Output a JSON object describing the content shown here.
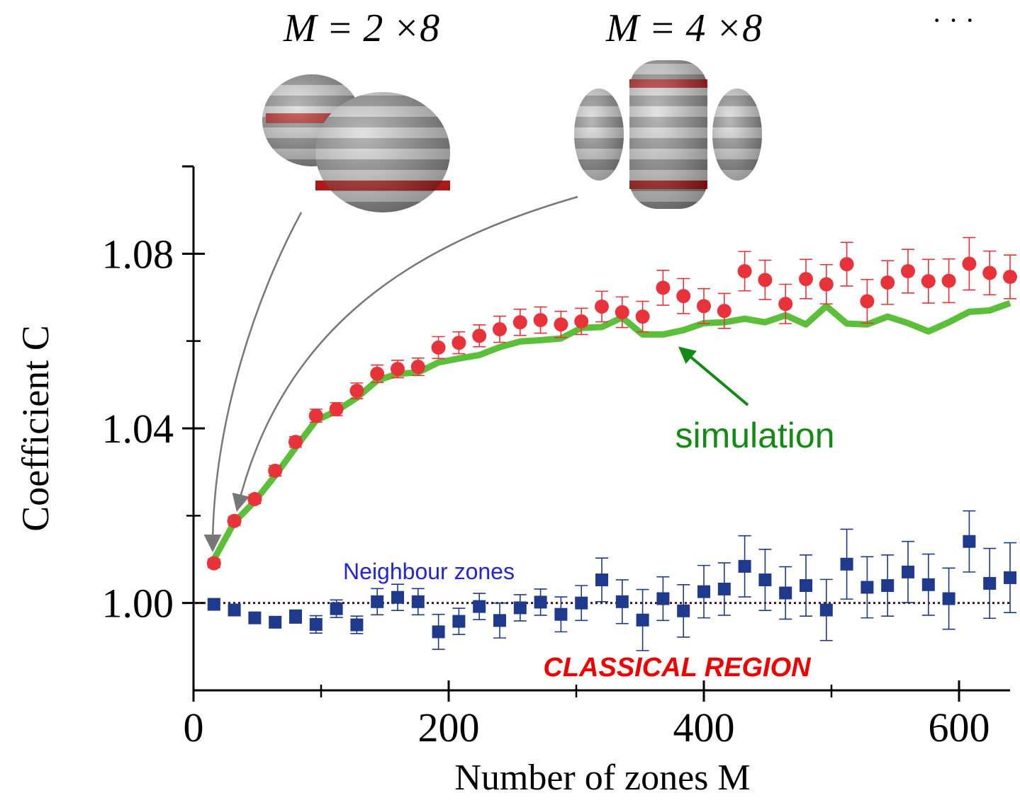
{
  "chart_data": {
    "type": "line",
    "y_label": "Coefficient C",
    "x_label": "Number of zones M",
    "annotations": [
      "M = 2 ×8",
      "M = 4 ×8",
      "· · ·",
      "CLASSICAL REGION"
    ],
    "xlim": [
      0,
      640
    ],
    "ylim": [
      0.98,
      1.1
    ],
    "xticks": [
      0,
      200,
      400,
      600
    ],
    "yticks": [
      {
        "value": 1.0,
        "label": "1.00"
      },
      1.04,
      1.08
    ],
    "xminorticks": [
      100,
      300,
      500
    ],
    "yminorticks": [
      1.02,
      1.06
    ],
    "hline": 1.0,
    "x": [
      16,
      32,
      48,
      64,
      80,
      96,
      112,
      128,
      144,
      160,
      176,
      192,
      208,
      224,
      240,
      256,
      272,
      288,
      304,
      320,
      336,
      352,
      368,
      384,
      400,
      416,
      432,
      448,
      464,
      480,
      496,
      512,
      528,
      544,
      560,
      576,
      592,
      608,
      624,
      640
    ],
    "series": [
      {
        "name": "simulation",
        "type": "line",
        "color": "#5cbf3a",
        "values": [
          1.01,
          1.0185,
          1.0233,
          1.0292,
          1.0356,
          1.0418,
          1.044,
          1.047,
          1.051,
          1.0525,
          1.0528,
          1.0551,
          1.056,
          1.0568,
          1.0586,
          1.0599,
          1.0602,
          1.0606,
          1.063,
          1.0632,
          1.0654,
          1.0615,
          1.0615,
          1.0625,
          1.0641,
          1.0643,
          1.0651,
          1.0643,
          1.0659,
          1.0638,
          1.068,
          1.064,
          1.0638,
          1.0656,
          1.0641,
          1.0622,
          1.0643,
          1.0667,
          1.067,
          1.0687
        ]
      },
      {
        "type": "errorbar",
        "marker": "circle",
        "color": "#e8333a",
        "values": [
          1.0091,
          1.0188,
          1.0238,
          1.0303,
          1.0369,
          1.0429,
          1.0444,
          1.0486,
          1.0525,
          1.0536,
          1.0541,
          1.0585,
          1.0596,
          1.0612,
          1.0627,
          1.0643,
          1.0648,
          1.0638,
          1.0645,
          1.0679,
          1.0666,
          1.0656,
          1.0722,
          1.0703,
          1.068,
          1.0669,
          1.076,
          1.074,
          1.0685,
          1.0742,
          1.073,
          1.0776,
          1.0691,
          1.0734,
          1.076,
          1.0737,
          1.0738,
          1.0777,
          1.0756,
          1.0747
        ],
        "errors": [
          0.001,
          0.001,
          0.001,
          0.0012,
          0.0012,
          0.0015,
          0.0015,
          0.0018,
          0.002,
          0.002,
          0.002,
          0.0025,
          0.0025,
          0.0025,
          0.003,
          0.003,
          0.003,
          0.003,
          0.003,
          0.0035,
          0.0035,
          0.0035,
          0.004,
          0.004,
          0.004,
          0.004,
          0.0045,
          0.0045,
          0.0045,
          0.0045,
          0.0045,
          0.005,
          0.005,
          0.005,
          0.005,
          0.005,
          0.005,
          0.006,
          0.005,
          0.005
        ]
      },
      {
        "name": "Neighbour zones",
        "type": "errorbar",
        "marker": "square",
        "color": "#1f3a8c",
        "values": [
          0.9997,
          0.9984,
          0.9966,
          0.9956,
          0.9969,
          0.9951,
          0.9987,
          0.995,
          1.0003,
          1.0013,
          1.0003,
          0.9934,
          0.9958,
          0.9992,
          0.996,
          0.9989,
          1.0002,
          0.9974,
          1.0,
          1.0053,
          1.0003,
          0.9961,
          1.001,
          0.9982,
          1.0026,
          1.0032,
          1.0084,
          1.0053,
          1.0023,
          1.004,
          0.9984,
          1.0089,
          1.0036,
          1.004,
          1.0071,
          1.0042,
          1.001,
          1.0141,
          1.0045,
          1.0058
        ],
        "errors": [
          0.001,
          0.0012,
          0.0012,
          0.0012,
          0.0015,
          0.002,
          0.002,
          0.002,
          0.003,
          0.003,
          0.003,
          0.004,
          0.003,
          0.003,
          0.004,
          0.003,
          0.003,
          0.004,
          0.004,
          0.005,
          0.005,
          0.007,
          0.005,
          0.006,
          0.006,
          0.006,
          0.007,
          0.007,
          0.006,
          0.007,
          0.007,
          0.008,
          0.007,
          0.007,
          0.007,
          0.007,
          0.007,
          0.007,
          0.008,
          0.008
        ]
      }
    ]
  }
}
